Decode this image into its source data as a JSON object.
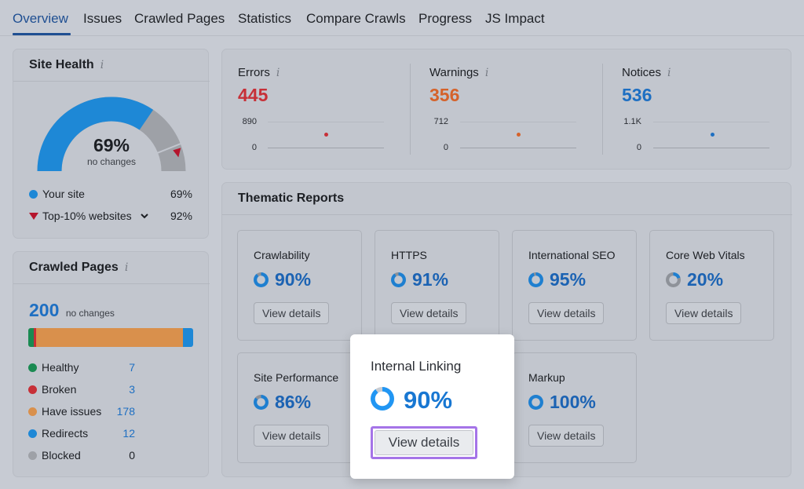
{
  "tabs": [
    "Overview",
    "Issues",
    "Crawled Pages",
    "Statistics",
    "Compare Crawls",
    "Progress",
    "JS Impact"
  ],
  "site_health": {
    "title": "Site Health",
    "value": "69%",
    "subtitle": "no changes",
    "health_fraction": 0.69,
    "legend": [
      {
        "label": "Your site",
        "value": "69%"
      },
      {
        "label": "Top-10% websites",
        "value": "92%"
      }
    ],
    "colors": {
      "your_site": "#1e88d6",
      "top10": "#b5152d",
      "remaining": "#9ea1a7"
    }
  },
  "issues": [
    {
      "label": "Errors",
      "value": "445",
      "max_tick": "890",
      "min_tick": "0",
      "color": "#c73038"
    },
    {
      "label": "Warnings",
      "value": "356",
      "max_tick": "712",
      "min_tick": "0",
      "color": "#d5622a"
    },
    {
      "label": "Notices",
      "value": "536",
      "max_tick": "1.1K",
      "min_tick": "0",
      "color": "#1e6fc2"
    }
  ],
  "thematic": {
    "title": "Thematic Reports",
    "view_label": "View details",
    "items": [
      {
        "name": "Crawlability",
        "pct": "90%",
        "fraction": 0.9
      },
      {
        "name": "HTTPS",
        "pct": "91%",
        "fraction": 0.91
      },
      {
        "name": "International SEO",
        "pct": "95%",
        "fraction": 0.95
      },
      {
        "name": "Core Web Vitals",
        "pct": "20%",
        "fraction": 0.2
      },
      {
        "name": "Site Performance",
        "pct": "86%",
        "fraction": 0.86
      },
      {
        "name": "Markup",
        "pct": "100%",
        "fraction": 1.0
      }
    ]
  },
  "highlight": {
    "name": "Internal Linking",
    "pct": "90%",
    "fraction": 0.9,
    "button": "View details"
  },
  "crawled_pages": {
    "title": "Crawled Pages",
    "total": "200",
    "change": "no changes",
    "items": [
      {
        "label": "Healthy",
        "value": "7",
        "color": "#1a8a52"
      },
      {
        "label": "Broken",
        "value": "3",
        "color": "#c73038"
      },
      {
        "label": "Have issues",
        "value": "178",
        "color": "#d9904c"
      },
      {
        "label": "Redirects",
        "value": "12",
        "color": "#1e88d6"
      },
      {
        "label": "Blocked",
        "value": "0",
        "color": "#9ea1a7"
      }
    ]
  },
  "info_glyph": "i"
}
